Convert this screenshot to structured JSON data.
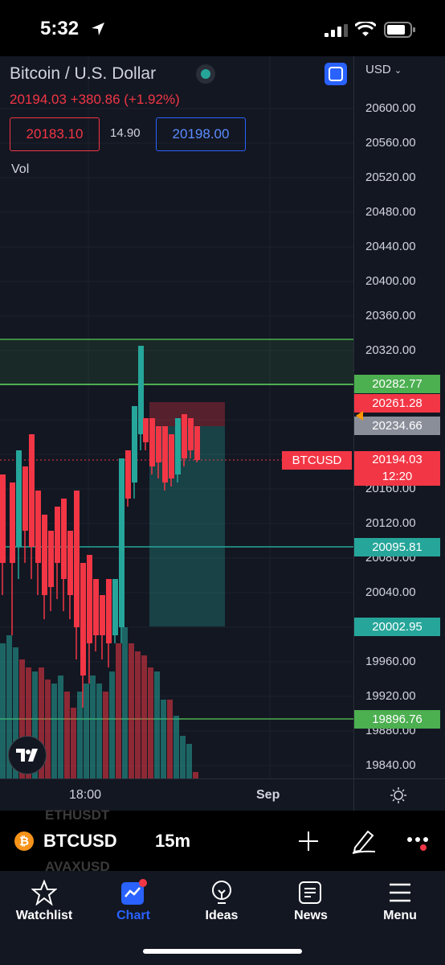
{
  "status_bar": {
    "time": "5:32"
  },
  "header": {
    "symbol_title": "Bitcoin / U.S. Dollar",
    "price": "20194.03",
    "change": "+380.86 (+1.92%)",
    "bid": "20183.10",
    "spread": "14.90",
    "ask": "20198.00",
    "volume_label": "Vol"
  },
  "price_axis": {
    "currency": "USD",
    "ticks": [
      "20600.00",
      "20560.00",
      "20520.00",
      "20480.00",
      "20440.00",
      "20400.00",
      "20360.00",
      "20320.00",
      "20160.00",
      "20120.00",
      "20080.00",
      "20040.00",
      "19960.00",
      "19920.00",
      "19880.00",
      "19840.00"
    ],
    "labels": [
      {
        "text": "20282.77",
        "color": "#4caf50"
      },
      {
        "text": "20261.28",
        "color": "#f23645"
      },
      {
        "text": "20234.66",
        "color": "#8a8e99"
      },
      {
        "text": "20095.81",
        "color": "#26a69a"
      },
      {
        "text": "20002.95",
        "color": "#26a69a"
      },
      {
        "text": "19896.76",
        "color": "#4caf50"
      }
    ],
    "current_symbol": "BTCUSD",
    "current_price": "20194.03",
    "countdown": "12:20"
  },
  "time_axis": {
    "ticks": [
      "18:00",
      "Sep"
    ]
  },
  "colors": {
    "up": "#26a69a",
    "down": "#f23645",
    "accent": "#2962ff",
    "line": "#4caf50"
  },
  "toolbar": {
    "symbol": "BTCUSD",
    "interval": "15m",
    "ghost_top": "ETHUSDT",
    "ghost_bottom": "AVAXUSD"
  },
  "nav": {
    "items": [
      {
        "label": "Watchlist",
        "icon": "star-icon"
      },
      {
        "label": "Chart",
        "icon": "chart-icon"
      },
      {
        "label": "Ideas",
        "icon": "lightbulb-icon"
      },
      {
        "label": "News",
        "icon": "newspaper-icon"
      },
      {
        "label": "Menu",
        "icon": "hamburger-icon"
      }
    ]
  }
}
